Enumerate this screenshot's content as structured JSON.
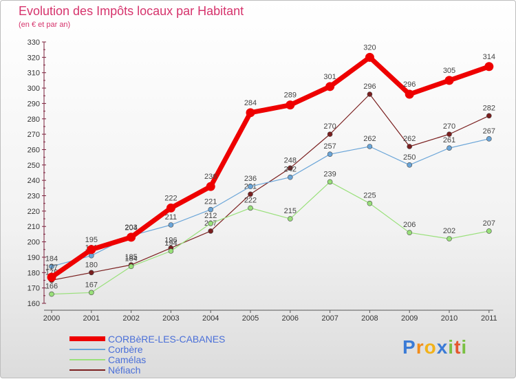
{
  "title": "Evolution des Impôts locaux par Habitant",
  "subtitle": "(en € et par an)",
  "logo": {
    "letters": [
      "P",
      "r",
      "o",
      "x",
      "i",
      "t",
      "i"
    ],
    "colors": [
      "#3b7bd6",
      "#f28c1a",
      "#f2b21a",
      "#3b7bd6",
      "#7ac043",
      "#e4572e",
      "#7ac043"
    ]
  },
  "chart_data": {
    "type": "line",
    "title": "Evolution des Impôts locaux par Habitant",
    "subtitle": "(en € et par an)",
    "xlabel": "",
    "ylabel": "",
    "ylim": [
      160,
      330
    ],
    "yticks": [
      160,
      170,
      180,
      190,
      200,
      210,
      220,
      230,
      240,
      250,
      260,
      270,
      280,
      290,
      300,
      310,
      320,
      330
    ],
    "categories": [
      "2000",
      "2001",
      "2002",
      "2003",
      "2004",
      "2005",
      "2006",
      "2007",
      "2008",
      "2009",
      "2010",
      "2011"
    ],
    "series": [
      {
        "name": "Néfiach",
        "color": "#7a1f1f",
        "width": 1.2,
        "values": [
          175,
          180,
          185,
          196,
          207,
          231,
          248,
          270,
          296,
          262,
          270,
          282
        ]
      },
      {
        "name": "Camélas",
        "color": "#99e07a",
        "width": 1.2,
        "values": [
          166,
          167,
          184,
          194,
          212,
          222,
          215,
          239,
          225,
          206,
          202,
          207
        ]
      },
      {
        "name": "Corbère",
        "color": "#6aa5d8",
        "width": 1.2,
        "values": [
          184,
          191,
          204,
          211,
          221,
          236,
          242,
          257,
          262,
          250,
          261,
          267
        ]
      },
      {
        "name": "CORBèRE-LES-CABANES",
        "color": "#ee0000",
        "width": 7,
        "values": [
          177,
          195,
          203,
          222,
          236,
          284,
          289,
          301,
          320,
          296,
          305,
          314
        ]
      }
    ],
    "legend": [
      "CORBèRE-LES-CABANES",
      "Corbère",
      "Camélas",
      "Néfiach"
    ],
    "grid": false
  }
}
